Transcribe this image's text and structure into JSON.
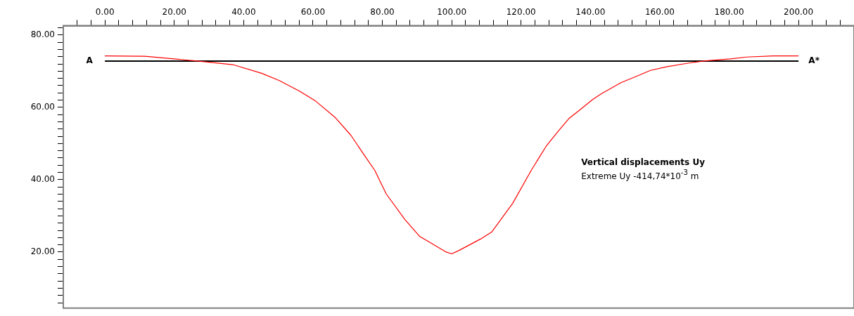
{
  "chart_data": {
    "type": "line",
    "grid": false,
    "legend": false,
    "marker": "none",
    "line_style": "solid",
    "xlim": [
      -12,
      216
    ],
    "ylim": [
      4.5,
      82.6
    ],
    "xticks": [
      {
        "value": -8,
        "label": null
      },
      {
        "value": -4,
        "label": null
      },
      {
        "value": 0,
        "label": "0.00"
      },
      {
        "value": 4,
        "label": null
      },
      {
        "value": 8,
        "label": null
      },
      {
        "value": 12,
        "label": null
      },
      {
        "value": 16,
        "label": null
      },
      {
        "value": 20,
        "label": "20.00"
      },
      {
        "value": 24,
        "label": null
      },
      {
        "value": 28,
        "label": null
      },
      {
        "value": 32,
        "label": null
      },
      {
        "value": 36,
        "label": null
      },
      {
        "value": 40,
        "label": "40.00"
      },
      {
        "value": 44,
        "label": null
      },
      {
        "value": 48,
        "label": null
      },
      {
        "value": 52,
        "label": null
      },
      {
        "value": 56,
        "label": null
      },
      {
        "value": 60,
        "label": "60.00"
      },
      {
        "value": 64,
        "label": null
      },
      {
        "value": 68,
        "label": null
      },
      {
        "value": 72,
        "label": null
      },
      {
        "value": 76,
        "label": null
      },
      {
        "value": 80,
        "label": "80.00"
      },
      {
        "value": 84,
        "label": null
      },
      {
        "value": 88,
        "label": null
      },
      {
        "value": 92,
        "label": null
      },
      {
        "value": 96,
        "label": null
      },
      {
        "value": 100,
        "label": "100.00"
      },
      {
        "value": 104,
        "label": null
      },
      {
        "value": 108,
        "label": null
      },
      {
        "value": 112,
        "label": null
      },
      {
        "value": 116,
        "label": null
      },
      {
        "value": 120,
        "label": "120.00"
      },
      {
        "value": 124,
        "label": null
      },
      {
        "value": 128,
        "label": null
      },
      {
        "value": 132,
        "label": null
      },
      {
        "value": 136,
        "label": null
      },
      {
        "value": 140,
        "label": "140.00"
      },
      {
        "value": 144,
        "label": null
      },
      {
        "value": 148,
        "label": null
      },
      {
        "value": 152,
        "label": null
      },
      {
        "value": 156,
        "label": null
      },
      {
        "value": 160,
        "label": "160.00"
      },
      {
        "value": 164,
        "label": null
      },
      {
        "value": 168,
        "label": null
      },
      {
        "value": 172,
        "label": null
      },
      {
        "value": 176,
        "label": null
      },
      {
        "value": 180,
        "label": "180.00"
      },
      {
        "value": 184,
        "label": null
      },
      {
        "value": 188,
        "label": null
      },
      {
        "value": 192,
        "label": null
      },
      {
        "value": 196,
        "label": null
      },
      {
        "value": 200,
        "label": "200.00"
      },
      {
        "value": 204,
        "label": null
      },
      {
        "value": 208,
        "label": null
      },
      {
        "value": 212,
        "label": null
      }
    ],
    "yticks": [
      {
        "value": 6,
        "label": null
      },
      {
        "value": 8,
        "label": null
      },
      {
        "value": 10,
        "label": null
      },
      {
        "value": 12,
        "label": null
      },
      {
        "value": 14,
        "label": null
      },
      {
        "value": 16,
        "label": null
      },
      {
        "value": 18,
        "label": null
      },
      {
        "value": 20,
        "label": "20.00"
      },
      {
        "value": 22,
        "label": null
      },
      {
        "value": 24,
        "label": null
      },
      {
        "value": 26,
        "label": null
      },
      {
        "value": 28,
        "label": null
      },
      {
        "value": 30,
        "label": null
      },
      {
        "value": 32,
        "label": null
      },
      {
        "value": 34,
        "label": null
      },
      {
        "value": 36,
        "label": null
      },
      {
        "value": 38,
        "label": null
      },
      {
        "value": 40,
        "label": "40.00"
      },
      {
        "value": 42,
        "label": null
      },
      {
        "value": 44,
        "label": null
      },
      {
        "value": 46,
        "label": null
      },
      {
        "value": 48,
        "label": null
      },
      {
        "value": 50,
        "label": null
      },
      {
        "value": 52,
        "label": null
      },
      {
        "value": 54,
        "label": null
      },
      {
        "value": 56,
        "label": null
      },
      {
        "value": 58,
        "label": null
      },
      {
        "value": 60,
        "label": "60.00"
      },
      {
        "value": 62,
        "label": null
      },
      {
        "value": 64,
        "label": null
      },
      {
        "value": 66,
        "label": null
      },
      {
        "value": 68,
        "label": null
      },
      {
        "value": 70,
        "label": null
      },
      {
        "value": 72,
        "label": null
      },
      {
        "value": 74,
        "label": null
      },
      {
        "value": 76,
        "label": null
      },
      {
        "value": 78,
        "label": null
      },
      {
        "value": 80,
        "label": "80.00"
      },
      {
        "value": 82,
        "label": null
      }
    ],
    "series": [
      {
        "color": "#ff0000",
        "x": [
          0,
          11.5,
          26.7,
          36.9,
          45.2,
          50.3,
          56.1,
          60.8,
          66.5,
          70.9,
          75.2,
          77.8,
          81.1,
          86.5,
          90.8,
          94.0,
          98.4,
          100,
          102.2,
          108.3,
          111.5,
          117.6,
          123,
          127.2,
          130.7,
          133.8,
          137.2,
          140.7,
          143.4,
          148.8,
          153.1,
          157.3,
          161.9,
          168.1,
          172.7,
          180.4,
          185,
          192.7,
          200
        ],
        "values": [
          74.2,
          74.1,
          72.8,
          71.8,
          69.4,
          67.4,
          64.5,
          61.7,
          57.1,
          52.3,
          46.2,
          42.6,
          36.1,
          29.0,
          24.3,
          22.5,
          20.0,
          19.5,
          20.5,
          23.6,
          25.5,
          33.5,
          42.7,
          49.2,
          53.4,
          56.9,
          59.5,
          62.2,
          63.9,
          66.8,
          68.5,
          70.2,
          71.2,
          72.2,
          72.8,
          73.4,
          73.9,
          74.2,
          74.2
        ]
      }
    ],
    "ref_lines": [
      {
        "axis": "y",
        "value": 72.8,
        "color": "#000000"
      }
    ],
    "annotations": [
      "A",
      "A*",
      "Vertical displacements Uy",
      "Extreme Uy -414,74*10$^{-3}$ m"
    ]
  }
}
